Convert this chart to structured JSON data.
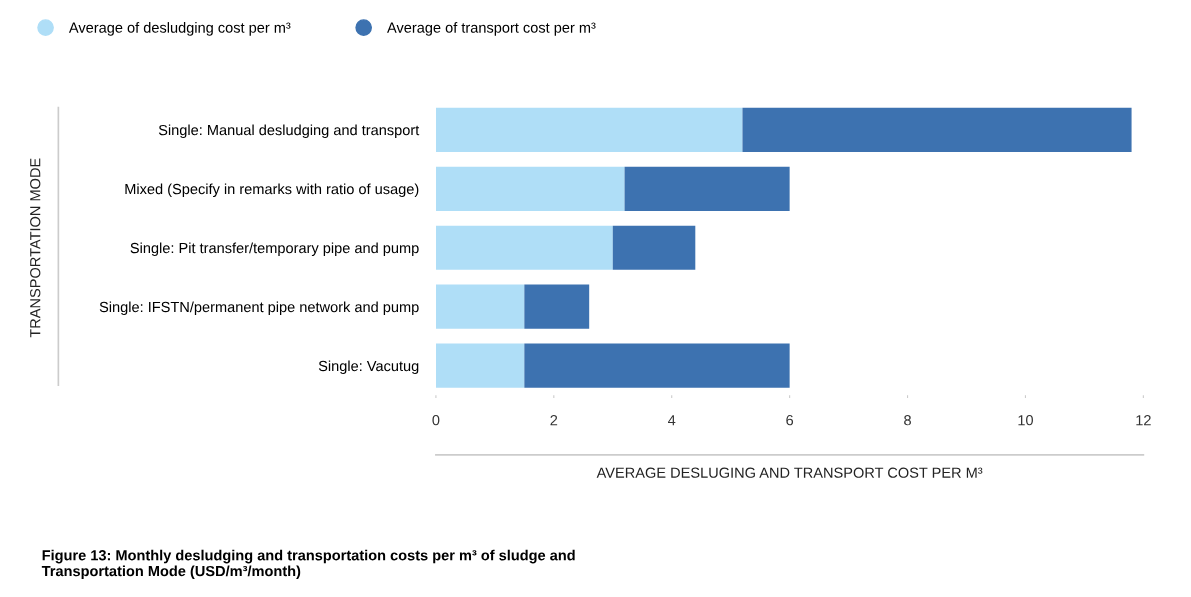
{
  "chart_data": {
    "type": "bar",
    "orientation": "horizontal",
    "stacked": true,
    "categories": [
      "Single: Manual desludging and transport",
      "Mixed (Specify in remarks with ratio of usage)",
      "Single: Pit transfer/temporary pipe and pump",
      "Single: IFSTN/permanent pipe network and pump",
      "Single: Vacutug"
    ],
    "series": [
      {
        "name": "Average of desludging cost per m³",
        "color": "#afdef7",
        "values": [
          5.2,
          3.2,
          3.0,
          1.5,
          1.5
        ]
      },
      {
        "name": "Average of transport cost per m³",
        "color": "#3d72b0",
        "values": [
          6.6,
          2.8,
          1.4,
          1.1,
          4.5
        ]
      }
    ],
    "xlim": [
      0,
      12
    ],
    "xticks": [
      0,
      2,
      4,
      6,
      8,
      10,
      12
    ],
    "xlabel": "AVERAGE DESLUGING AND TRANSPORT COST PER M³",
    "ylabel": "TRANSPORTATION MODE",
    "legend": "top left",
    "grid": false,
    "annotations": [
      "Figure 13: Monthly desludging and transportation costs per m³ of sludge and Transportation Mode (USD/m³/month)"
    ]
  }
}
